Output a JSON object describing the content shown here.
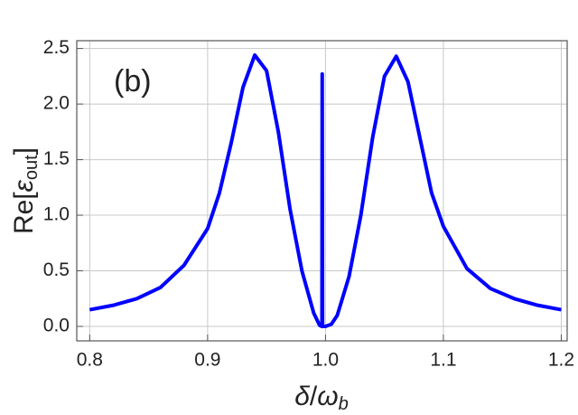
{
  "chart_data": {
    "type": "line",
    "annotation": "(b)",
    "xlabel": [
      "δ",
      "/",
      "ω",
      "b"
    ],
    "ylabel": [
      "Re[",
      "ε",
      "out",
      "]"
    ],
    "x": [
      0.8,
      0.82,
      0.84,
      0.86,
      0.88,
      0.9,
      0.91,
      0.92,
      0.93,
      0.94,
      0.95,
      0.96,
      0.97,
      0.98,
      0.99,
      0.995,
      0.997,
      0.9972,
      0.9975,
      1.0,
      1.005,
      1.01,
      1.02,
      1.03,
      1.04,
      1.05,
      1.06,
      1.07,
      1.08,
      1.09,
      1.1,
      1.12,
      1.14,
      1.16,
      1.18,
      1.2
    ],
    "series": [
      {
        "color": "#0000ff",
        "values": [
          0.15,
          0.19,
          0.25,
          0.35,
          0.55,
          0.88,
          1.2,
          1.65,
          2.15,
          2.44,
          2.3,
          1.75,
          1.05,
          0.5,
          0.12,
          0.01,
          0.0,
          2.27,
          0.0,
          0.0,
          0.02,
          0.1,
          0.45,
          1.0,
          1.7,
          2.25,
          2.43,
          2.2,
          1.7,
          1.2,
          0.9,
          0.52,
          0.34,
          0.25,
          0.19,
          0.15
        ]
      }
    ],
    "xlim": [
      0.789,
      1.205
    ],
    "ylim": [
      -0.13,
      2.57
    ],
    "xticks": [
      0.8,
      0.9,
      {
        "value": 1,
        "label": "1.0"
      },
      1.1,
      1.2
    ],
    "yticks": [
      {
        "value": 0,
        "label": "0.0"
      },
      0.5,
      {
        "value": 1,
        "label": "1.0"
      },
      1.5,
      {
        "value": 2,
        "label": "2.0"
      },
      2.5
    ],
    "grid": true
  }
}
